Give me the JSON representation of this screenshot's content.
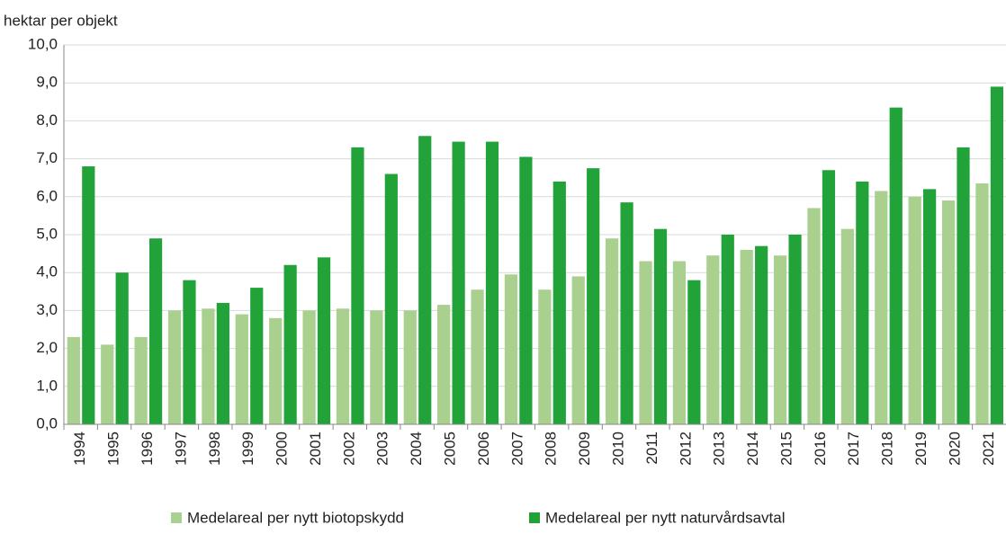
{
  "chart_data": {
    "type": "bar",
    "y_label": "hektar per objekt",
    "categories": [
      "1994",
      "1995",
      "1996",
      "1997",
      "1998",
      "1999",
      "2000",
      "2001",
      "2002",
      "2003",
      "2004",
      "2005",
      "2006",
      "2007",
      "2008",
      "2009",
      "2010",
      "2011",
      "2012",
      "2013",
      "2014",
      "2015",
      "2016",
      "2017",
      "2018",
      "2019",
      "2020",
      "2021"
    ],
    "series": [
      {
        "name": "Medelareal per nytt biotopskydd",
        "color": "#a9d08e",
        "values": [
          2.3,
          2.1,
          2.3,
          3.0,
          3.05,
          2.9,
          2.8,
          3.0,
          3.05,
          3.0,
          3.0,
          3.15,
          3.55,
          3.95,
          3.55,
          3.9,
          4.9,
          4.3,
          4.3,
          4.45,
          4.6,
          4.45,
          5.7,
          5.15,
          6.15,
          6.0,
          5.9,
          6.35
        ]
      },
      {
        "name": "Medelareal per nytt naturvårdsavtal",
        "color": "#22a33a",
        "values": [
          6.8,
          4.0,
          4.9,
          3.8,
          3.2,
          3.6,
          4.2,
          4.4,
          7.3,
          6.6,
          7.6,
          7.45,
          7.45,
          7.05,
          6.4,
          6.75,
          5.85,
          5.15,
          3.8,
          5.0,
          4.7,
          5.0,
          6.7,
          6.4,
          8.35,
          6.2,
          7.3,
          8.9
        ]
      }
    ],
    "ylim": [
      0,
      10
    ],
    "yticks": [
      {
        "value": 0,
        "label": "0,0"
      },
      {
        "value": 1,
        "label": "1,0"
      },
      {
        "value": 2,
        "label": "2,0"
      },
      {
        "value": 3,
        "label": "3,0"
      },
      {
        "value": 4,
        "label": "4,0"
      },
      {
        "value": 5,
        "label": "5,0"
      },
      {
        "value": 6,
        "label": "6,0"
      },
      {
        "value": 7,
        "label": "7,0"
      },
      {
        "value": 8,
        "label": "8,0"
      },
      {
        "value": 9,
        "label": "9,0"
      },
      {
        "value": 10,
        "label": "10,0"
      }
    ],
    "grid": true
  }
}
